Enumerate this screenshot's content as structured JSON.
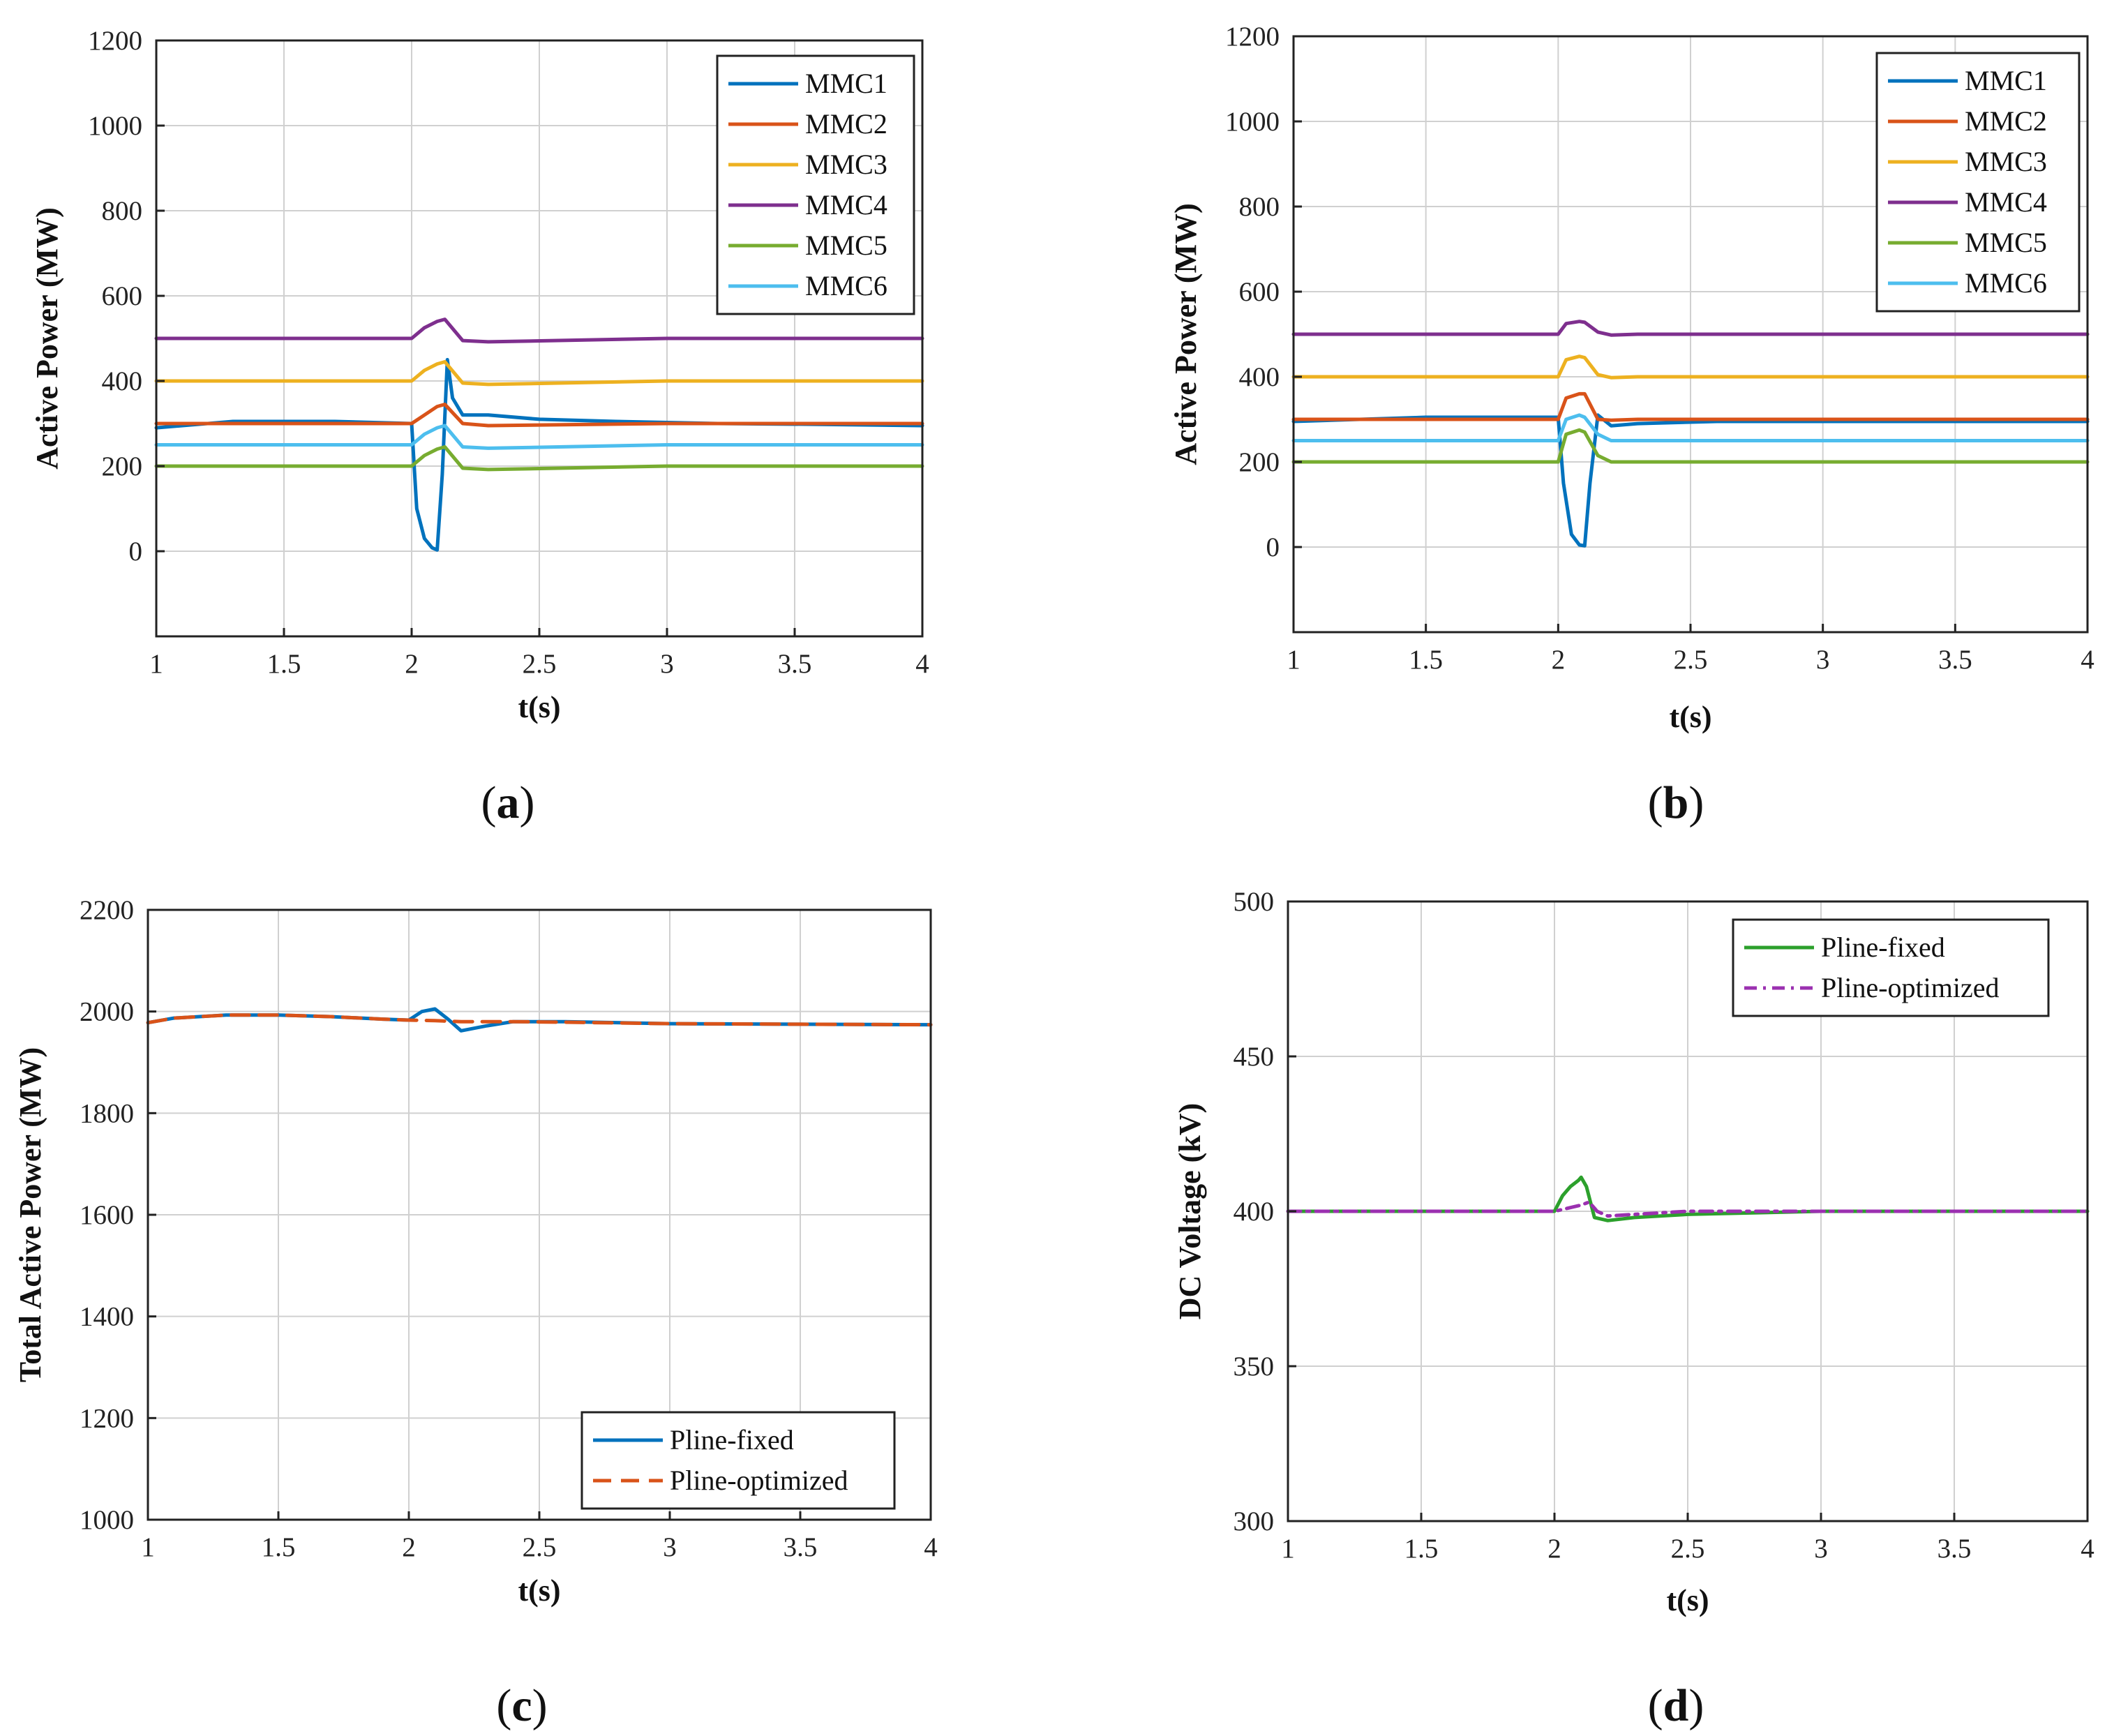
{
  "chart_data": [
    {
      "id": "a",
      "panel_label": "a",
      "type": "line",
      "title": "",
      "xlabel": "t(s)",
      "ylabel": "Active Power (MW)",
      "xlim": [
        1,
        4
      ],
      "ylim": [
        -200,
        1200
      ],
      "xticks": [
        1,
        1.5,
        2,
        2.5,
        3,
        3.5,
        4
      ],
      "xtick_labels": [
        "1",
        "1.5",
        "2",
        "2.5",
        "3",
        "3.5",
        "4"
      ],
      "yticks": [
        0,
        200,
        400,
        600,
        800,
        1000,
        1200
      ],
      "ytick_labels": [
        "0",
        "200",
        "400",
        "600",
        "800",
        "1000",
        "1200"
      ],
      "grid": true,
      "legend_position": "top-right",
      "series": [
        {
          "name": "MMC1",
          "color": "#0072BD",
          "dash": "solid",
          "x": [
            1,
            1.3,
            1.7,
            2.0,
            2.02,
            2.05,
            2.08,
            2.1,
            2.12,
            2.14,
            2.16,
            2.2,
            2.3,
            2.5,
            2.8,
            3.2,
            3.6,
            4.0
          ],
          "y": [
            290,
            305,
            305,
            300,
            100,
            30,
            8,
            3,
            180,
            450,
            360,
            320,
            320,
            310,
            305,
            300,
            298,
            295
          ]
        },
        {
          "name": "MMC2",
          "color": "#D95319",
          "dash": "solid",
          "x": [
            1,
            1.5,
            2.0,
            2.05,
            2.1,
            2.13,
            2.2,
            2.3,
            3.0,
            4.0
          ],
          "y": [
            300,
            300,
            300,
            320,
            340,
            345,
            300,
            295,
            300,
            300
          ]
        },
        {
          "name": "MMC3",
          "color": "#EDB120",
          "dash": "solid",
          "x": [
            1,
            1.5,
            2.0,
            2.05,
            2.1,
            2.13,
            2.2,
            2.3,
            3.0,
            4.0
          ],
          "y": [
            400,
            400,
            400,
            425,
            440,
            445,
            395,
            392,
            400,
            400
          ]
        },
        {
          "name": "MMC4",
          "color": "#7E2F8E",
          "dash": "solid",
          "x": [
            1,
            1.5,
            2.0,
            2.05,
            2.1,
            2.13,
            2.2,
            2.3,
            3.0,
            4.0
          ],
          "y": [
            500,
            500,
            500,
            525,
            540,
            545,
            495,
            492,
            500,
            500
          ]
        },
        {
          "name": "MMC5",
          "color": "#77AC30",
          "dash": "solid",
          "x": [
            1,
            1.5,
            2.0,
            2.05,
            2.1,
            2.13,
            2.2,
            2.3,
            3.0,
            4.0
          ],
          "y": [
            200,
            200,
            200,
            225,
            240,
            245,
            195,
            192,
            200,
            200
          ]
        },
        {
          "name": "MMC6",
          "color": "#4DBEEE",
          "dash": "solid",
          "x": [
            1,
            1.5,
            2.0,
            2.05,
            2.1,
            2.13,
            2.2,
            2.3,
            3.0,
            4.0
          ],
          "y": [
            250,
            250,
            250,
            275,
            290,
            295,
            245,
            242,
            250,
            250
          ]
        }
      ]
    },
    {
      "id": "b",
      "panel_label": "b",
      "type": "line",
      "title": "",
      "xlabel": "t(s)",
      "ylabel": "Active Power (MW)",
      "xlim": [
        1,
        4
      ],
      "ylim": [
        -200,
        1200
      ],
      "xticks": [
        1,
        1.5,
        2,
        2.5,
        3,
        3.5,
        4
      ],
      "xtick_labels": [
        "1",
        "1.5",
        "2",
        "2.5",
        "3",
        "3.5",
        "4"
      ],
      "yticks": [
        0,
        200,
        400,
        600,
        800,
        1000,
        1200
      ],
      "ytick_labels": [
        "0",
        "200",
        "400",
        "600",
        "800",
        "1000",
        "1200"
      ],
      "grid": true,
      "legend_position": "top-right",
      "series": [
        {
          "name": "MMC1",
          "color": "#0072BD",
          "dash": "solid",
          "x": [
            1,
            1.5,
            2.0,
            2.02,
            2.05,
            2.08,
            2.1,
            2.12,
            2.15,
            2.2,
            2.3,
            2.6,
            3.0,
            4.0
          ],
          "y": [
            295,
            305,
            305,
            150,
            30,
            5,
            3,
            150,
            310,
            285,
            290,
            295,
            295,
            295
          ]
        },
        {
          "name": "MMC2",
          "color": "#D95319",
          "dash": "solid",
          "x": [
            1,
            1.5,
            2.0,
            2.03,
            2.08,
            2.1,
            2.15,
            2.2,
            2.3,
            3.0,
            4.0
          ],
          "y": [
            300,
            300,
            300,
            350,
            360,
            360,
            300,
            298,
            300,
            300,
            300
          ]
        },
        {
          "name": "MMC3",
          "color": "#EDB120",
          "dash": "solid",
          "x": [
            1,
            1.5,
            2.0,
            2.03,
            2.08,
            2.1,
            2.15,
            2.2,
            2.3,
            3.0,
            4.0
          ],
          "y": [
            400,
            400,
            400,
            440,
            448,
            445,
            405,
            398,
            400,
            400,
            400
          ]
        },
        {
          "name": "MMC4",
          "color": "#7E2F8E",
          "dash": "solid",
          "x": [
            1,
            1.5,
            2.0,
            2.03,
            2.08,
            2.1,
            2.15,
            2.2,
            2.3,
            3.0,
            4.0
          ],
          "y": [
            500,
            500,
            500,
            525,
            530,
            528,
            505,
            498,
            500,
            500,
            500
          ]
        },
        {
          "name": "MMC5",
          "color": "#77AC30",
          "dash": "solid",
          "x": [
            1,
            1.5,
            2.0,
            2.03,
            2.08,
            2.1,
            2.15,
            2.2,
            2.3,
            3.0,
            4.0
          ],
          "y": [
            200,
            200,
            200,
            265,
            275,
            270,
            215,
            200,
            200,
            200,
            200
          ]
        },
        {
          "name": "MMC6",
          "color": "#4DBEEE",
          "dash": "solid",
          "x": [
            1,
            1.5,
            2.0,
            2.03,
            2.08,
            2.1,
            2.15,
            2.2,
            2.3,
            3.0,
            4.0
          ],
          "y": [
            250,
            250,
            250,
            300,
            310,
            305,
            265,
            250,
            250,
            250,
            250
          ]
        }
      ]
    },
    {
      "id": "c",
      "panel_label": "c",
      "type": "line",
      "title": "",
      "xlabel": "t(s)",
      "ylabel": "Total Active Power (MW)",
      "xlim": [
        1,
        4
      ],
      "ylim": [
        1000,
        2200
      ],
      "xticks": [
        1,
        1.5,
        2,
        2.5,
        3,
        3.5,
        4
      ],
      "xtick_labels": [
        "1",
        "1.5",
        "2",
        "2.5",
        "3",
        "3.5",
        "4"
      ],
      "yticks": [
        1000,
        1200,
        1400,
        1600,
        1800,
        2000,
        2200
      ],
      "ytick_labels": [
        "1000",
        "1200",
        "1400",
        "1600",
        "1800",
        "2000",
        "2200"
      ],
      "grid": true,
      "legend_position": "bottom-right",
      "series": [
        {
          "name": "Pline-fixed",
          "color": "#0072BD",
          "dash": "solid",
          "x": [
            1,
            1.1,
            1.3,
            1.5,
            1.7,
            1.9,
            2.0,
            2.05,
            2.1,
            2.15,
            2.2,
            2.3,
            2.4,
            2.6,
            3.0,
            3.5,
            4.0
          ],
          "y": [
            1978,
            1987,
            1993,
            1993,
            1990,
            1985,
            1983,
            2000,
            2005,
            1985,
            1962,
            1972,
            1980,
            1980,
            1976,
            1975,
            1974
          ]
        },
        {
          "name": "Pline-optimized",
          "color": "#D95319",
          "dash": "dashed",
          "x": [
            1,
            1.1,
            1.3,
            1.5,
            1.7,
            1.9,
            2.0,
            2.1,
            2.2,
            2.3,
            2.4,
            2.6,
            3.0,
            3.5,
            4.0
          ],
          "y": [
            1978,
            1987,
            1993,
            1993,
            1990,
            1985,
            1983,
            1982,
            1980,
            1980,
            1980,
            1979,
            1976,
            1975,
            1974
          ]
        }
      ]
    },
    {
      "id": "d",
      "panel_label": "d",
      "type": "line",
      "title": "",
      "xlabel": "t(s)",
      "ylabel": "DC Voltage (kV)",
      "xlim": [
        1,
        4
      ],
      "ylim": [
        300,
        500
      ],
      "xticks": [
        1,
        1.5,
        2,
        2.5,
        3,
        3.5,
        4
      ],
      "xtick_labels": [
        "1",
        "1.5",
        "2",
        "2.5",
        "3",
        "3.5",
        "4"
      ],
      "yticks": [
        300,
        350,
        400,
        450,
        500
      ],
      "ytick_labels": [
        "300",
        "350",
        "400",
        "450",
        "500"
      ],
      "grid": true,
      "legend_position": "top-right",
      "series": [
        {
          "name": "Pline-fixed",
          "color": "#2CA02C",
          "dash": "solid",
          "x": [
            1,
            1.5,
            2.0,
            2.03,
            2.06,
            2.09,
            2.1,
            2.12,
            2.15,
            2.2,
            2.3,
            2.5,
            3.0,
            4.0
          ],
          "y": [
            400,
            400,
            400,
            405,
            408,
            410,
            411,
            408,
            398,
            397,
            398,
            399,
            400,
            400
          ]
        },
        {
          "name": "Pline-optimized",
          "color": "#9B30B0",
          "dash": "dashdot",
          "x": [
            1,
            1.5,
            2.0,
            2.05,
            2.1,
            2.13,
            2.16,
            2.2,
            2.3,
            2.5,
            3.0,
            4.0
          ],
          "y": [
            400,
            400,
            400,
            401,
            402,
            403,
            400,
            398.5,
            399,
            400,
            400,
            400
          ]
        }
      ]
    }
  ]
}
